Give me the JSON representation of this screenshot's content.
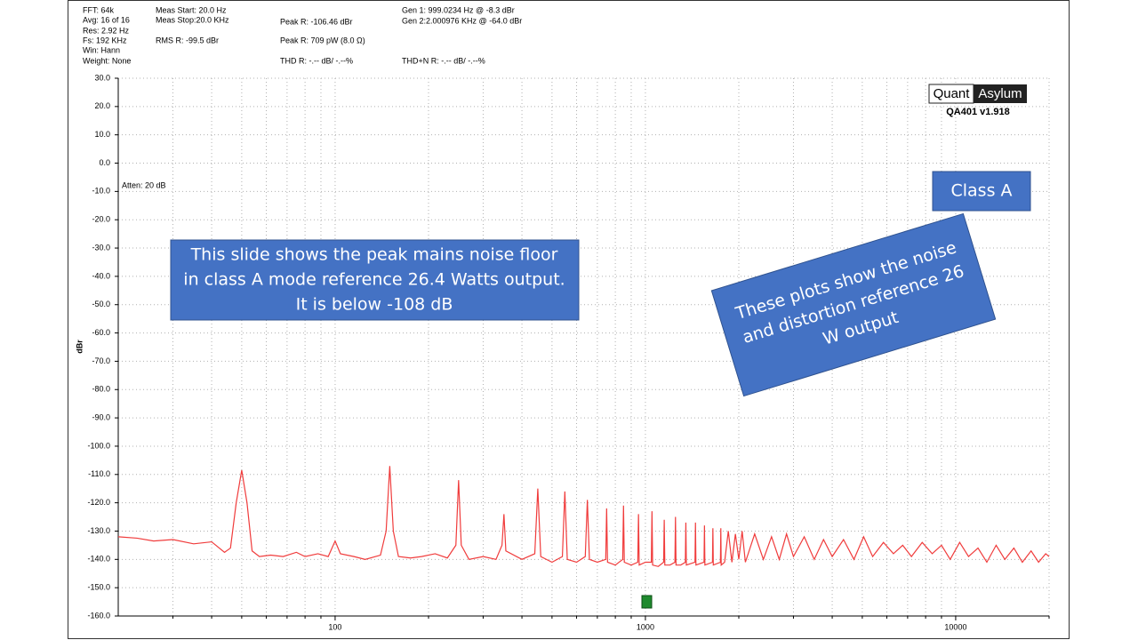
{
  "chart_data": {
    "type": "line",
    "y_label": "dBr",
    "log_x": true,
    "grid": true,
    "color": "#f03c3c",
    "xlim": [
      20,
      20000
    ],
    "ylim": [
      -160,
      30
    ],
    "xticks": [
      100,
      1000,
      10000
    ],
    "xminor_ticks": [
      30,
      40,
      50,
      60,
      70,
      80,
      90,
      200,
      300,
      400,
      500,
      600,
      700,
      800,
      900,
      2000,
      3000,
      4000,
      5000,
      6000,
      7000,
      8000,
      9000,
      20000
    ],
    "yticks": [
      {
        "value": 30,
        "label": "30.0"
      },
      {
        "value": 20,
        "label": "20.0"
      },
      {
        "value": 10,
        "label": "10.0"
      },
      {
        "value": 0,
        "label": "0.0"
      },
      {
        "value": -10,
        "label": "-10.0"
      },
      {
        "value": -20,
        "label": "-20.0"
      },
      {
        "value": -30,
        "label": "-30.0"
      },
      {
        "value": -40,
        "label": "-40.0"
      },
      {
        "value": -50,
        "label": "-50.0"
      },
      {
        "value": -60,
        "label": "-60.0"
      },
      {
        "value": -70,
        "label": "-70.0"
      },
      {
        "value": -80,
        "label": "-80.0"
      },
      {
        "value": -90,
        "label": "-90.0"
      },
      {
        "value": -100,
        "label": "-100.0"
      },
      {
        "value": -110,
        "label": "-110.0"
      },
      {
        "value": -120,
        "label": "-120.0"
      },
      {
        "value": -130,
        "label": "-130.0"
      },
      {
        "value": -140,
        "label": "-140.0"
      },
      {
        "value": -150,
        "label": "-150.0"
      },
      {
        "value": -160,
        "label": "-160.0"
      }
    ],
    "readouts": [
      "FFT: 64k",
      "Avg: 16 of 16",
      "Res: 2.92 Hz",
      "Fs: 192 KHz",
      "Win: Hann",
      "Weight: None",
      "Meas Start: 20.0 Hz",
      "Meas Stop:20.0 KHz",
      "RMS R: -99.5 dBr",
      "Peak R: -106.46 dBr",
      "Peak R: 709 pW (8.0 Ω)",
      "THD R: -.-- dB/ -.--%",
      "Gen 1: 999.0234 Hz @ -8.3  dBr",
      "Gen 2:2.000976 KHz @ -64.0  dBr",
      "THD+N R: -.-- dB/ -.--%"
    ],
    "atten": "Atten: 20 dB",
    "logo": [
      "Quant",
      "Asylum"
    ],
    "version": "QA401 v1.918",
    "note_box": [
      "This slide shows the peak mains noise floor",
      "in class A mode reference 26.4 Watts output.",
      "It is below -108 dB"
    ],
    "class_box": "Class A",
    "tilted_box": [
      "These plots show the noise",
      "and distortion reference 26",
      "W output"
    ],
    "x": [
      20,
      23,
      26,
      30,
      35,
      40,
      44,
      46,
      48,
      50,
      52,
      54,
      57,
      62,
      68,
      75,
      80,
      88,
      95,
      100,
      104,
      115,
      125,
      140,
      146,
      150,
      154,
      160,
      175,
      190,
      210,
      230,
      245,
      250,
      255,
      270,
      300,
      330,
      345,
      350,
      355,
      400,
      440,
      450,
      460,
      500,
      540,
      550,
      560,
      600,
      640,
      650,
      660,
      700,
      745,
      750,
      755,
      800,
      845,
      850,
      855,
      900,
      945,
      950,
      955,
      1000,
      1045,
      1050,
      1055,
      1100,
      1145,
      1150,
      1155,
      1200,
      1245,
      1250,
      1255,
      1300,
      1345,
      1350,
      1355,
      1445,
      1450,
      1455,
      1545,
      1550,
      1555,
      1645,
      1650,
      1655,
      1745,
      1750,
      1755,
      1800,
      1850,
      1900,
      1950,
      2000,
      2050,
      2100,
      2250,
      2400,
      2550,
      2700,
      2850,
      3000,
      3250,
      3500,
      3750,
      4000,
      4350,
      4700,
      5050,
      5400,
      5850,
      6300,
      6750,
      7200,
      7800,
      8400,
      9000,
      9600,
      10300,
      11000,
      11800,
      12600,
      13500,
      14400,
      15400,
      16400,
      17500,
      18500,
      19500,
      20000
    ],
    "values": [
      -132,
      -132.5,
      -133.5,
      -133,
      -134.5,
      -133.8,
      -137.5,
      -136,
      -120,
      -108.5,
      -120,
      -137,
      -139,
      -138.5,
      -139,
      -137.5,
      -139,
      -138,
      -139,
      -133.5,
      -138,
      -139,
      -140,
      -138.5,
      -130,
      -107,
      -130,
      -139,
      -139.5,
      -139,
      -138,
      -139.5,
      -135,
      -112,
      -135,
      -140,
      -139,
      -140,
      -135,
      -124,
      -137,
      -140,
      -138,
      -115,
      -139,
      -141,
      -139,
      -116,
      -140,
      -141,
      -139,
      -119,
      -140,
      -141,
      -140,
      -122,
      -141,
      -142,
      -140,
      -121,
      -141,
      -142,
      -141,
      -124,
      -142,
      -141,
      -141,
      -123,
      -142,
      -142.5,
      -141,
      -126,
      -142,
      -142,
      -141,
      -125,
      -142,
      -142,
      -141,
      -127,
      -142,
      -141,
      -127,
      -142,
      -141,
      -128,
      -142,
      -141,
      -129,
      -142,
      -141,
      -129,
      -142,
      -141,
      -130,
      -141,
      -131,
      -140,
      -130,
      -141,
      -131,
      -140,
      -132,
      -140,
      -131,
      -139,
      -132,
      -140,
      -133,
      -139,
      -133,
      -140,
      -132,
      -139,
      -134,
      -138,
      -135,
      -139,
      -134,
      -138,
      -135,
      -140,
      -134,
      -139,
      -136,
      -141,
      -135,
      -140,
      -136,
      -141,
      -137,
      -141,
      -138,
      -139
    ]
  }
}
